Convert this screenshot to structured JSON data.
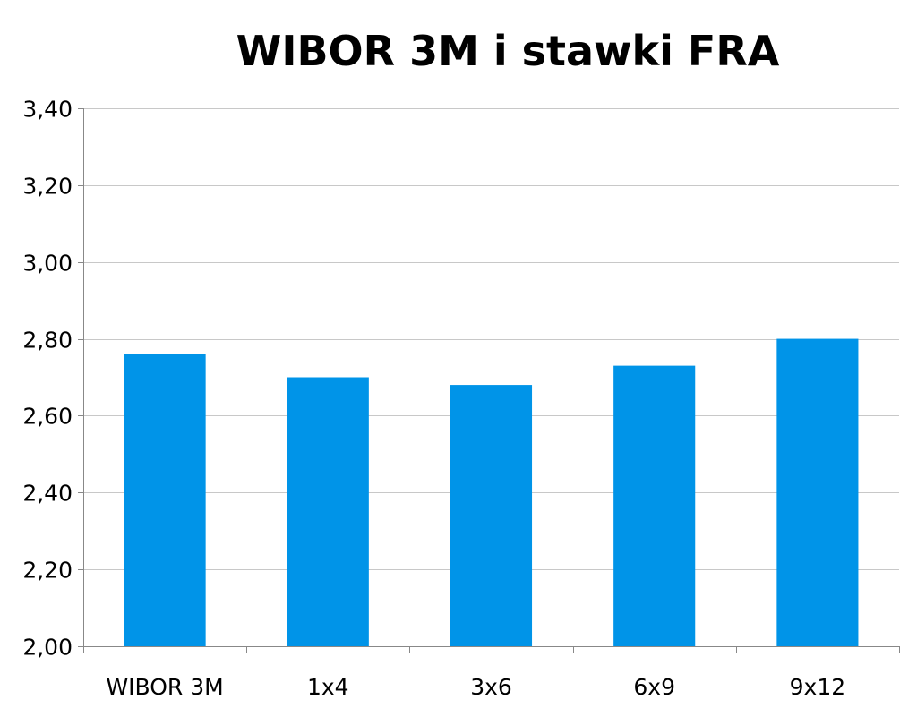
{
  "chart_data": {
    "type": "bar",
    "title": "WIBOR 3M i stawki FRA",
    "xlabel": "",
    "ylabel": "",
    "categories": [
      "WIBOR 3M",
      "1x4",
      "3x6",
      "6x9",
      "9x12"
    ],
    "values": [
      2.76,
      2.7,
      2.68,
      2.73,
      2.8
    ],
    "ylim": [
      2.0,
      3.4
    ],
    "yticks": [
      2.0,
      2.2,
      2.4,
      2.6,
      2.8,
      3.0,
      3.2,
      3.4
    ],
    "ytick_labels": [
      "2,00",
      "2,20",
      "2,40",
      "2,60",
      "2,80",
      "3,00",
      "3,20",
      "3,40"
    ],
    "grid": true,
    "legend": "none",
    "bar_color": "#0094e8",
    "grid_color": "#c8c8c8",
    "axis_color": "#888888"
  }
}
